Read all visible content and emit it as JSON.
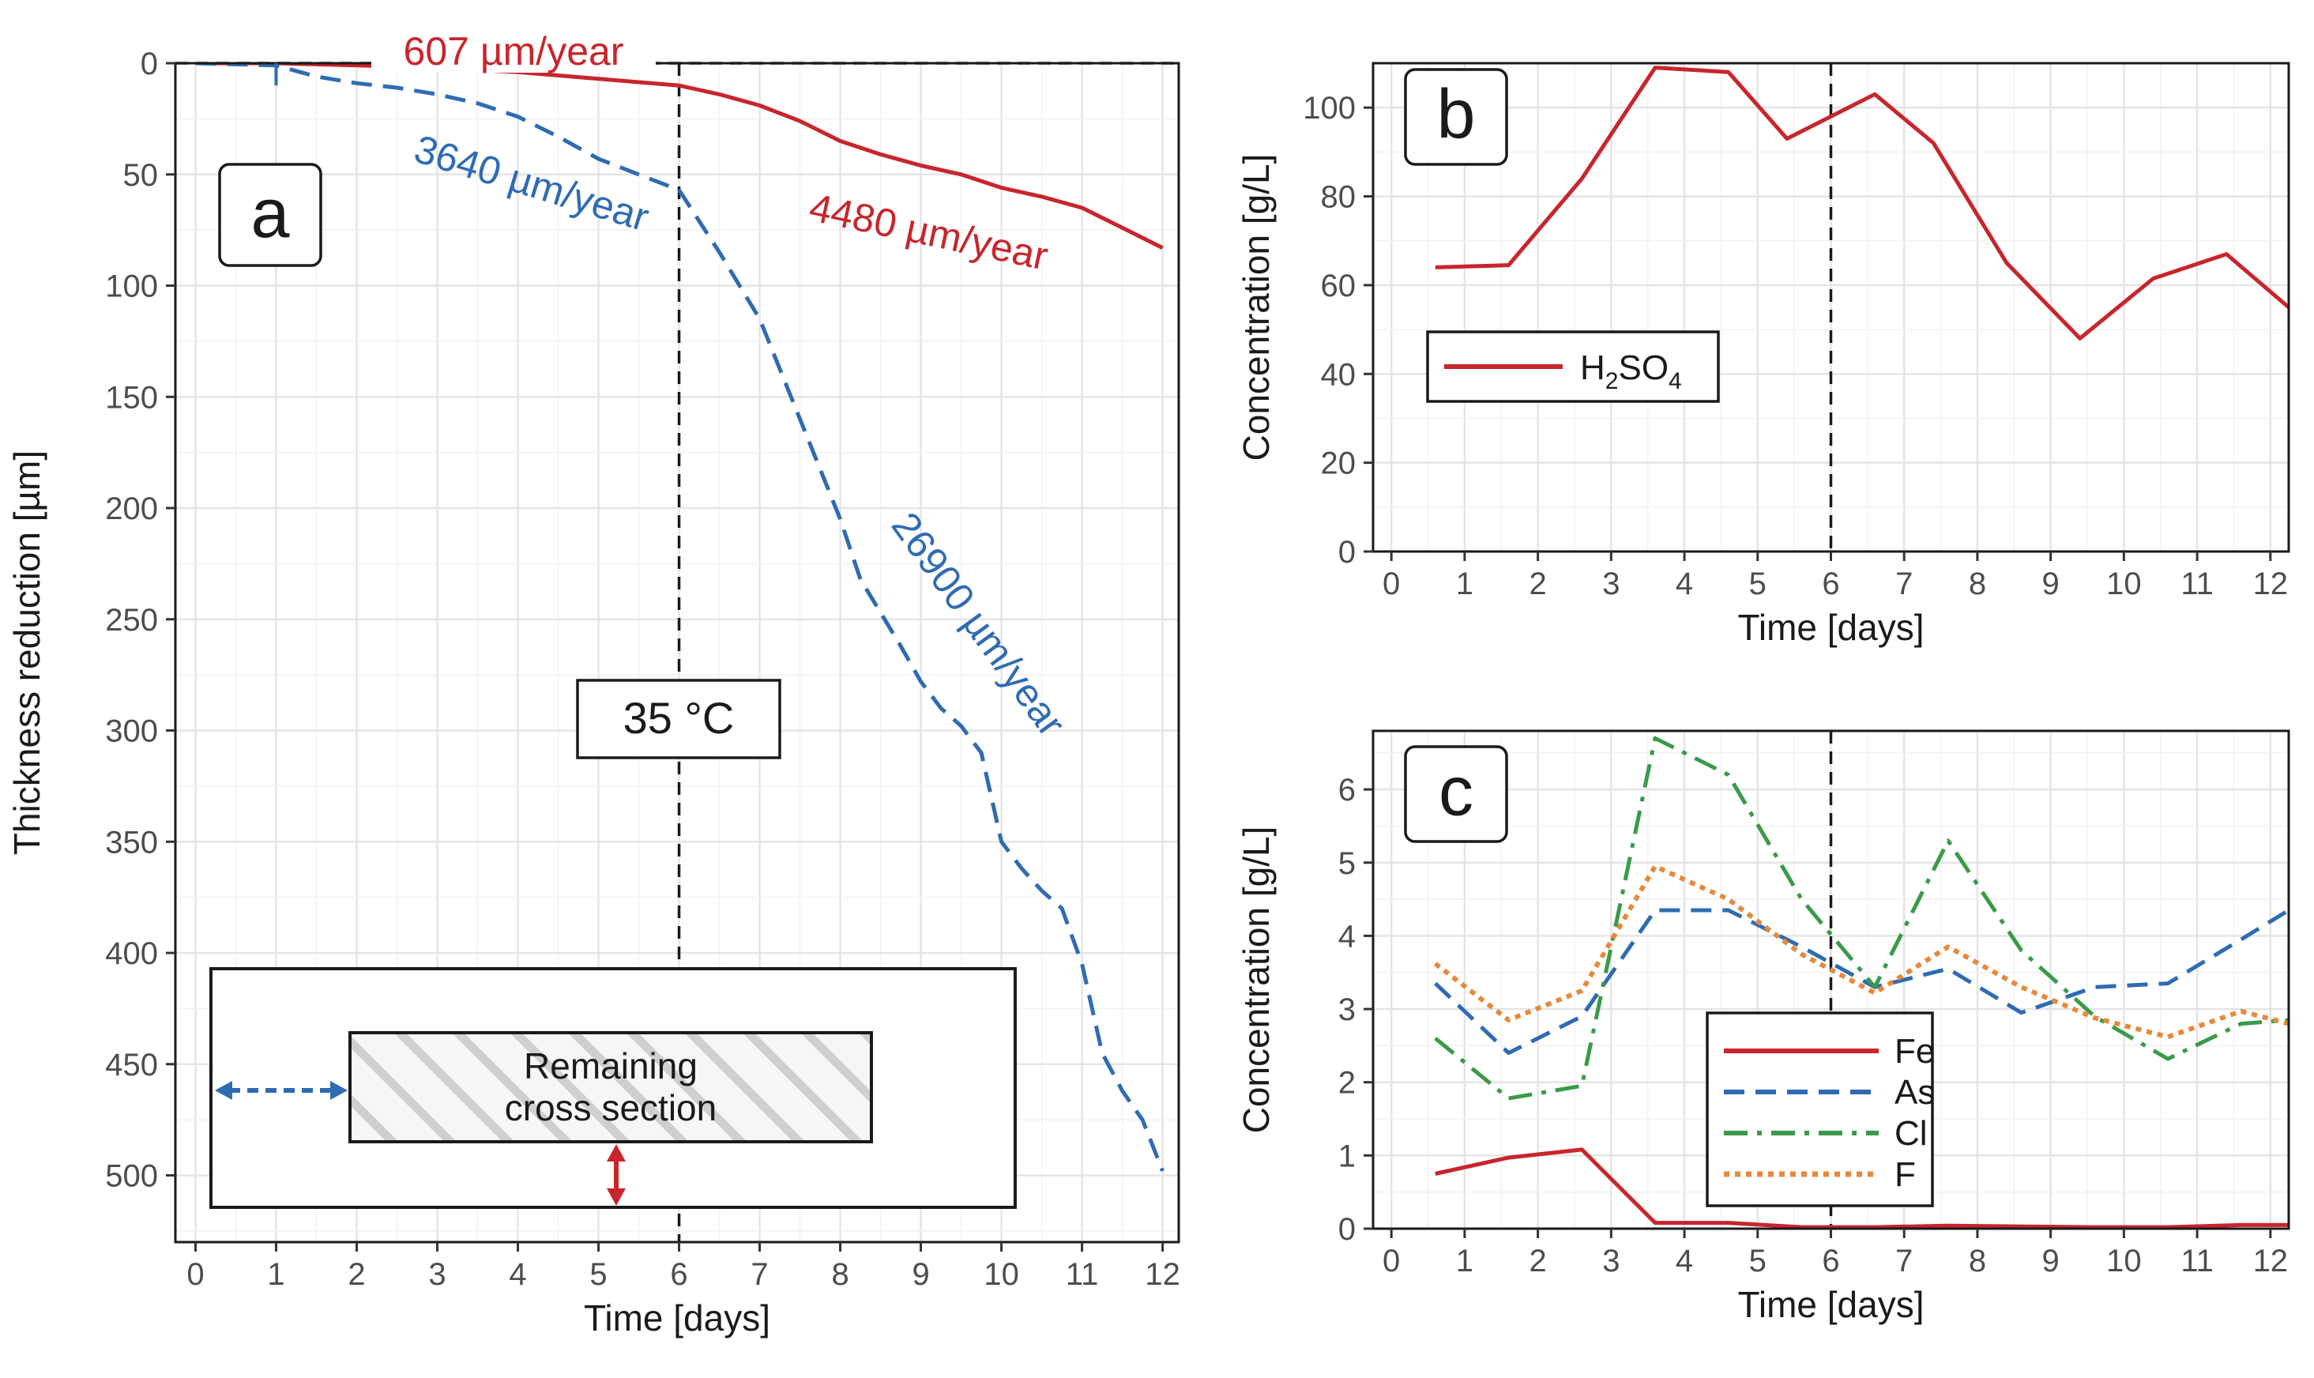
{
  "chart_data": [
    {
      "type": "line",
      "panel": "a",
      "xlabel": "Time [days]",
      "ylabel": "Thickness reduction [µm]",
      "xlim": [
        -0.25,
        12.2
      ],
      "ylim": [
        0,
        530
      ],
      "y_inverted": true,
      "xticks": [
        0,
        1,
        2,
        3,
        4,
        5,
        6,
        7,
        8,
        9,
        10,
        11,
        12
      ],
      "yticks": [
        0,
        50,
        100,
        150,
        200,
        250,
        300,
        350,
        400,
        450,
        500
      ],
      "vline_x": 6,
      "hline_y": 0,
      "series": [
        {
          "name": "red",
          "color": "#c8252c",
          "style": "solid",
          "x": [
            0,
            1,
            2,
            3,
            4,
            5,
            6,
            6.5,
            7,
            7.5,
            8,
            8.5,
            9,
            9.5,
            10,
            10.5,
            11,
            11.5,
            12
          ],
          "y": [
            0,
            0,
            1,
            2,
            4,
            7,
            10,
            14,
            19,
            26,
            35,
            41,
            46,
            50,
            56,
            60,
            65,
            74,
            83
          ]
        },
        {
          "name": "blue",
          "color": "#2f6bb3",
          "style": "dashed",
          "x": [
            0,
            1,
            1.5,
            2,
            2.5,
            3,
            3.5,
            4,
            4.5,
            5,
            5.5,
            6,
            6.5,
            7,
            7.5,
            8,
            8.25,
            8.5,
            8.75,
            9,
            9.25,
            9.5,
            9.75,
            10,
            10.25,
            10.5,
            10.75,
            11,
            11.25,
            11.5,
            11.75,
            12
          ],
          "y": [
            0,
            1,
            6,
            9,
            11,
            14,
            18,
            24,
            33,
            43,
            50,
            57,
            85,
            115,
            160,
            205,
            232,
            247,
            262,
            278,
            290,
            298,
            310,
            350,
            362,
            372,
            380,
            405,
            445,
            462,
            475,
            498
          ]
        }
      ],
      "annotations": [
        {
          "key": "a1",
          "text": "607 µm/year",
          "color": "#c8252c"
        },
        {
          "key": "a2",
          "text": "3640 µm/year",
          "color": "#2f6bb3"
        },
        {
          "key": "a3",
          "text": "4480 µm/year",
          "color": "#c8252c"
        },
        {
          "key": "a4",
          "text": "26900 µm/year",
          "color": "#2f6bb3"
        }
      ],
      "temperature_label": "35 °C",
      "panel_label": "a",
      "inset": {
        "line1": "Remaining",
        "line2": "cross section"
      }
    },
    {
      "type": "line",
      "panel": "b",
      "xlabel": "Time [days]",
      "ylabel": "Concentration [g/L]",
      "xlim": [
        -0.25,
        12.25
      ],
      "ylim": [
        0,
        110
      ],
      "xticks": [
        0,
        1,
        2,
        3,
        4,
        5,
        6,
        7,
        8,
        9,
        10,
        11,
        12
      ],
      "yticks": [
        0,
        20,
        40,
        60,
        80,
        100
      ],
      "vline_x": 6,
      "series": [
        {
          "name": "H2SO4",
          "color": "#c8252c",
          "style": "solid",
          "x": [
            0.6,
            1.6,
            2.6,
            3.6,
            4.6,
            5.4,
            6.6,
            7.4,
            8.4,
            9.4,
            10.4,
            11.4,
            12.25
          ],
          "y": [
            64,
            64.5,
            84,
            109,
            108,
            93,
            103,
            92,
            65,
            48,
            61.5,
            67,
            55
          ]
        }
      ],
      "legend": [
        {
          "sym": "H",
          "sub": "2",
          "rest": "SO",
          "sub2": "4"
        }
      ],
      "panel_label": "b"
    },
    {
      "type": "line",
      "panel": "c",
      "xlabel": "Time [days]",
      "ylabel": "Concentration [g/L]",
      "xlim": [
        -0.25,
        12.25
      ],
      "ylim": [
        0,
        6.8
      ],
      "xticks": [
        0,
        1,
        2,
        3,
        4,
        5,
        6,
        7,
        8,
        9,
        10,
        11,
        12
      ],
      "yticks": [
        0,
        1,
        2,
        3,
        4,
        5,
        6
      ],
      "vline_x": 6,
      "series": [
        {
          "name": "Fe",
          "color": "#c8252c",
          "style": "solid",
          "x": [
            0.6,
            1.6,
            2.6,
            3.6,
            4.6,
            5.6,
            6.6,
            7.6,
            8.6,
            9.6,
            10.6,
            11.6,
            12.25
          ],
          "y": [
            0.75,
            0.97,
            1.08,
            0.08,
            0.08,
            0.02,
            0.02,
            0.04,
            0.03,
            0.02,
            0.02,
            0.05,
            0.05
          ]
        },
        {
          "name": "As",
          "color": "#2f6bb3",
          "style": "dashed",
          "x": [
            0.6,
            1.6,
            2.6,
            3.6,
            4.6,
            5.6,
            6.6,
            7.6,
            8.6,
            9.6,
            10.6,
            11.6,
            12.25
          ],
          "y": [
            3.35,
            2.4,
            2.9,
            4.35,
            4.35,
            3.85,
            3.3,
            3.55,
            2.95,
            3.3,
            3.35,
            3.95,
            4.35
          ]
        },
        {
          "name": "Cl",
          "color": "#3a9a4a",
          "style": "dashdot",
          "x": [
            0.6,
            1.6,
            2.6,
            3.6,
            4.6,
            5.6,
            6.6,
            7.6,
            8.6,
            9.6,
            10.6,
            11.6,
            12.25
          ],
          "y": [
            2.6,
            1.78,
            1.95,
            6.7,
            6.2,
            4.5,
            3.3,
            5.3,
            3.8,
            2.9,
            2.32,
            2.8,
            2.85
          ]
        },
        {
          "name": "F",
          "color": "#e8883a",
          "style": "dotted",
          "x": [
            0.6,
            1.6,
            2.6,
            3.6,
            4.6,
            5.6,
            6.6,
            7.6,
            8.6,
            9.6,
            10.6,
            11.6,
            12.25
          ],
          "y": [
            3.62,
            2.85,
            3.25,
            4.95,
            4.5,
            3.75,
            3.22,
            3.85,
            3.3,
            2.88,
            2.62,
            2.97,
            2.8
          ]
        }
      ],
      "legend": [
        "Fe",
        "As",
        "Cl",
        "F"
      ],
      "panel_label": "c"
    }
  ]
}
